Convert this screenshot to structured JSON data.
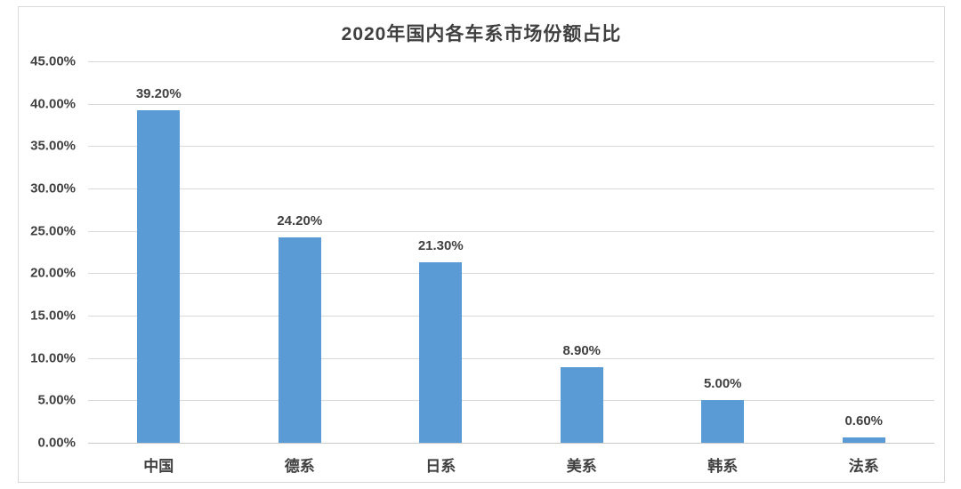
{
  "chart_data": {
    "type": "bar",
    "title": "2020年国内各车系市场份额占比",
    "categories": [
      "中国",
      "德系",
      "日系",
      "美系",
      "韩系",
      "法系"
    ],
    "values": [
      39.2,
      24.2,
      21.3,
      8.9,
      5.0,
      0.6
    ],
    "data_labels": [
      "39.20%",
      "24.20%",
      "21.30%",
      "8.90%",
      "5.00%",
      "0.60%"
    ],
    "y_tick_labels": [
      "45.00%",
      "40.00%",
      "35.00%",
      "30.00%",
      "25.00%",
      "20.00%",
      "15.00%",
      "10.00%",
      "5.00%",
      "0.00%"
    ],
    "ylim": [
      0,
      45
    ],
    "y_step": 5,
    "xlabel": "",
    "ylabel": "",
    "grid": true,
    "legend": "none",
    "bar_color": "#5b9bd5",
    "text_color": "#404040",
    "grid_color": "#d9d9d9",
    "frame_border_color": "#d9d9d9"
  }
}
